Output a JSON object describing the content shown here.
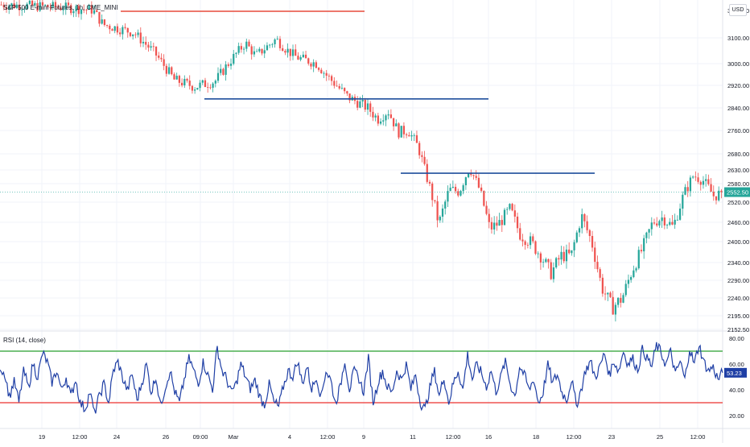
{
  "header": {
    "symbol_title": "S&P 500 E-mini Futures, 1h, CME_MINI",
    "currency": "USD"
  },
  "rsi_panel": {
    "label": "RSI (14, close)",
    "last_value": "53.23",
    "upper_level": 70,
    "lower_level": 30,
    "y_ticks": [
      "80.00",
      "60.00",
      "40.00",
      "20.00"
    ]
  },
  "price_panel": {
    "last_price": "2552.50",
    "y_ticks": [
      "3100.00",
      "3000.00",
      "2920.00",
      "2840.00",
      "2760.00",
      "2680.00",
      "2630.00",
      "2580.00",
      "2520.00",
      "2460.00",
      "2400.00",
      "2340.00",
      "2290.00",
      "2240.00",
      "2195.00",
      "2152.50"
    ],
    "partial_top_tick": "3200.00"
  },
  "x_axis": {
    "labels": [
      "19",
      "12:00",
      "24",
      "26",
      "09:00",
      "Mar",
      "4",
      "12:00",
      "9",
      "11",
      "12:00",
      "16",
      "18",
      "12:00",
      "23",
      "25",
      "12:00"
    ]
  },
  "colors": {
    "up": "#26a69a",
    "down": "#ef5350",
    "rsi_line": "#1f3fa5",
    "support_line": "#1f4e9c",
    "resistance_line": "#e74c3c",
    "rsi_upper": "#4caf50",
    "rsi_lower": "#ef5350",
    "price_badge": "#26a69a",
    "rsi_badge": "#1f3fa5"
  },
  "chart_data": [
    {
      "type": "candlestick",
      "title": "S&P 500 E-mini Futures, 1h, CME_MINI",
      "x_labels": [
        "19",
        "12:00",
        "24",
        "26",
        "09:00",
        "Mar",
        "4",
        "12:00",
        "9",
        "11",
        "12:00",
        "16",
        "18",
        "12:00",
        "23",
        "25",
        "12:00"
      ],
      "close_path": [
        [
          0,
          3225
        ],
        [
          6,
          3215
        ],
        [
          9,
          3205
        ],
        [
          10,
          3150
        ],
        [
          13,
          3120
        ],
        [
          15,
          3045
        ],
        [
          17,
          2940
        ],
        [
          19,
          2915
        ],
        [
          21,
          2935
        ],
        [
          23,
          3035
        ],
        [
          24,
          3080
        ],
        [
          25,
          3030
        ],
        [
          27,
          3095
        ],
        [
          28,
          3055
        ],
        [
          29,
          3025
        ],
        [
          31,
          3000
        ],
        [
          32,
          2955
        ],
        [
          34,
          2880
        ],
        [
          36,
          2840
        ],
        [
          37,
          2800
        ],
        [
          38,
          2830
        ],
        [
          39,
          2755
        ],
        [
          40,
          2760
        ],
        [
          41,
          2700
        ],
        [
          42,
          2580
        ],
        [
          43,
          2455
        ],
        [
          44,
          2560
        ],
        [
          45,
          2555
        ],
        [
          46,
          2640
        ],
        [
          47,
          2560
        ],
        [
          48,
          2440
        ],
        [
          49,
          2460
        ],
        [
          50,
          2500
        ],
        [
          51,
          2420
        ],
        [
          52,
          2400
        ],
        [
          53,
          2360
        ],
        [
          54,
          2310
        ],
        [
          55,
          2360
        ],
        [
          56,
          2360
        ],
        [
          57,
          2480
        ],
        [
          58,
          2400
        ],
        [
          59,
          2270
        ],
        [
          60,
          2215
        ],
        [
          61,
          2240
        ],
        [
          62,
          2320
        ],
        [
          63,
          2380
        ],
        [
          64,
          2460
        ],
        [
          65,
          2475
        ],
        [
          66,
          2445
        ],
        [
          67,
          2540
        ],
        [
          68,
          2610
        ],
        [
          69,
          2590
        ],
        [
          70,
          2540
        ],
        [
          71,
          2552.5
        ]
      ],
      "y_range": [
        2152.5,
        3225
      ],
      "last_price": 2552.5,
      "drawn_levels": [
        {
          "name": "resistance",
          "price": 3200,
          "color": "#e74c3c"
        },
        {
          "name": "support-1",
          "price": 2872,
          "color": "#1f4e9c"
        },
        {
          "name": "support-2",
          "price": 2618,
          "color": "#1f4e9c"
        }
      ]
    },
    {
      "type": "line",
      "title": "RSI (14, close)",
      "y_range": [
        10,
        85
      ],
      "levels": [
        70,
        30
      ],
      "last_value": 53.23,
      "series": [
        {
          "name": "RSI (14, close)",
          "values": [
            58,
            52,
            35,
            47,
            30,
            55,
            42,
            60,
            50,
            68,
            62,
            45,
            55,
            40,
            50,
            35,
            48,
            30,
            25,
            38,
            22,
            35,
            45,
            30,
            55,
            62,
            48,
            40,
            52,
            32,
            45,
            60,
            38,
            50,
            28,
            42,
            55,
            38,
            30,
            48,
            65,
            55,
            45,
            62,
            52,
            40,
            73,
            55,
            48,
            38,
            45,
            60,
            50,
            40,
            48,
            35,
            28,
            45,
            30,
            27,
            42,
            55,
            50,
            62,
            45,
            58,
            40,
            50,
            35,
            55,
            48,
            30,
            42,
            63,
            40,
            55,
            48,
            38,
            65,
            30,
            45,
            55,
            42,
            38,
            55,
            48,
            60,
            40,
            52,
            30,
            25,
            42,
            55,
            35,
            50,
            30,
            45,
            55,
            40,
            68,
            48,
            60,
            52,
            42,
            55,
            38,
            50,
            62,
            45,
            35,
            58,
            52,
            40,
            48,
            30,
            38,
            60,
            45,
            52,
            38,
            32,
            48,
            28,
            40,
            55,
            62,
            50,
            58,
            68,
            52,
            62,
            55,
            70,
            60,
            65,
            55,
            72,
            65,
            58,
            75,
            68,
            60,
            70,
            52,
            62,
            48,
            72,
            60,
            75,
            62,
            55,
            58,
            48,
            53.23
          ]
        }
      ]
    }
  ]
}
